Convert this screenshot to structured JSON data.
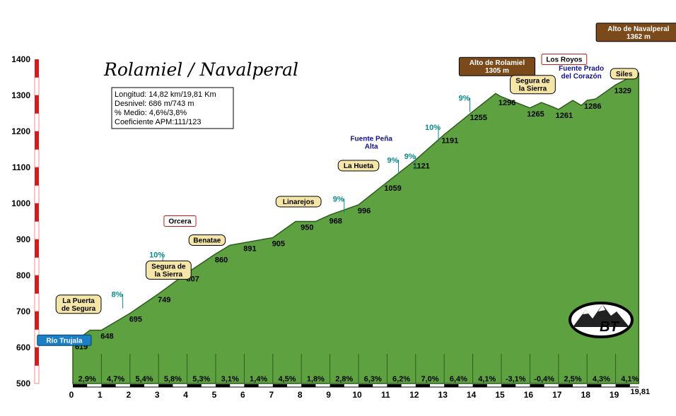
{
  "chart_data": {
    "type": "area",
    "title": "Rolamiel / Navalperal",
    "info": [
      "Longitud: 14,82 km/19,81 Km",
      "Desnivel: 686 m/743 m",
      "% Medio: 4,6%/3,8%",
      "Coeficiente APM:111/123"
    ],
    "ylim": [
      500,
      1400
    ],
    "y_ticks": [
      500,
      600,
      700,
      800,
      900,
      1000,
      1100,
      1200,
      1300,
      1400
    ],
    "xlim": [
      0,
      20
    ],
    "x_ticks": [
      "0",
      "1",
      "2",
      "3",
      "4",
      "5",
      "6",
      "7",
      "8",
      "9",
      "10",
      "11",
      "12",
      "13",
      "14",
      "15",
      "16",
      "17",
      "18",
      "19"
    ],
    "x_end_label": "19,81",
    "profile": [
      [
        0,
        619
      ],
      [
        0.3,
        630
      ],
      [
        0.6,
        648
      ],
      [
        1,
        648
      ],
      [
        2,
        695
      ],
      [
        3,
        749
      ],
      [
        4,
        807
      ],
      [
        5,
        860
      ],
      [
        5.5,
        884
      ],
      [
        6,
        891
      ],
      [
        7,
        905
      ],
      [
        7.8,
        950
      ],
      [
        8,
        950
      ],
      [
        8.5,
        950
      ],
      [
        9,
        968
      ],
      [
        10,
        996
      ],
      [
        11,
        1059
      ],
      [
        12,
        1121
      ],
      [
        13,
        1191
      ],
      [
        14,
        1255
      ],
      [
        14.8,
        1305
      ],
      [
        15,
        1296
      ],
      [
        16,
        1265
      ],
      [
        16.4,
        1280
      ],
      [
        16.8,
        1268
      ],
      [
        17,
        1261
      ],
      [
        17.5,
        1286
      ],
      [
        17.8,
        1272
      ],
      [
        18,
        1286
      ],
      [
        18.3,
        1290
      ],
      [
        19,
        1329
      ],
      [
        19.5,
        1350
      ],
      [
        19.81,
        1362
      ]
    ],
    "point_labels": [
      {
        "x": 0.3,
        "y": 619,
        "label": "619"
      },
      {
        "x": 1.2,
        "y": 648,
        "label": "648"
      },
      {
        "x": 2.2,
        "y": 695,
        "label": "695"
      },
      {
        "x": 3.2,
        "y": 749,
        "label": "749"
      },
      {
        "x": 4.2,
        "y": 807,
        "label": "807"
      },
      {
        "x": 5.2,
        "y": 860,
        "label": "860"
      },
      {
        "x": 6.2,
        "y": 891,
        "label": "891"
      },
      {
        "x": 7.2,
        "y": 905,
        "label": "905"
      },
      {
        "x": 8.2,
        "y": 950,
        "label": "950"
      },
      {
        "x": 9.2,
        "y": 968,
        "label": "968"
      },
      {
        "x": 10.2,
        "y": 996,
        "label": "996"
      },
      {
        "x": 11.2,
        "y": 1059,
        "label": "1059"
      },
      {
        "x": 12.2,
        "y": 1121,
        "label": "1121"
      },
      {
        "x": 13.2,
        "y": 1191,
        "label": "1191"
      },
      {
        "x": 14.2,
        "y": 1255,
        "label": "1255"
      },
      {
        "x": 15.2,
        "y": 1296,
        "label": "1296"
      },
      {
        "x": 16.2,
        "y": 1265,
        "label": "1265"
      },
      {
        "x": 17.2,
        "y": 1261,
        "label": "1261"
      },
      {
        "x": 18.2,
        "y": 1286,
        "label": "1286"
      },
      {
        "x": 19.25,
        "y": 1329,
        "label": "1329"
      }
    ],
    "segment_gradients": [
      "2,9%",
      "4,7%",
      "5,4%",
      "5,8%",
      "5,3%",
      "3,1%",
      "1,4%",
      "4,5%",
      "1,8%",
      "2,8%",
      "6,3%",
      "6,2%",
      "7,0%",
      "6,4%",
      "4,1%",
      "-3,1%",
      "-0,4%",
      "2,5%",
      "4,3%",
      "4,1%"
    ],
    "max_pct": [
      {
        "x": 1.55,
        "y": 740,
        "label": "8%"
      },
      {
        "x": 2.95,
        "y": 850,
        "label": "10%"
      },
      {
        "x": 9.3,
        "y": 1005,
        "label": "9%"
      },
      {
        "x": 11.2,
        "y": 1113,
        "label": "9%"
      },
      {
        "x": 11.8,
        "y": 1124,
        "label": "9%"
      },
      {
        "x": 12.6,
        "y": 1204,
        "label": "10%"
      },
      {
        "x": 13.7,
        "y": 1285,
        "label": "9%"
      }
    ],
    "places": [
      {
        "label": "Río Trujala",
        "x": -0.3,
        "y": 620,
        "style": "blue"
      },
      {
        "label": "La Puerta de Segura",
        "x": 0.2,
        "y": 720,
        "style": "tan"
      },
      {
        "label": "Segura de la Sierra",
        "x": 3.35,
        "y": 815,
        "style": "tan"
      },
      {
        "label": "Orcera",
        "x": 3.75,
        "y": 951,
        "style": "red"
      },
      {
        "label": "Benatae",
        "x": 4.7,
        "y": 898,
        "style": "tan"
      },
      {
        "label": "Linarejos",
        "x": 7.9,
        "y": 1005,
        "style": "tan"
      },
      {
        "label": "La Hueta",
        "x": 10.0,
        "y": 1105,
        "style": "tan"
      },
      {
        "label": "Fuente Peña Alta",
        "x": 10.45,
        "y": 1170,
        "style": "text"
      },
      {
        "label": "Alto de Rolamiel 1305 m",
        "x": 14.85,
        "y": 1380,
        "style": "brown"
      },
      {
        "label": "Segura de la Sierra",
        "x": 16.1,
        "y": 1330,
        "style": "tan"
      },
      {
        "label": "Los Royos",
        "x": 17.2,
        "y": 1400,
        "style": "red"
      },
      {
        "label": "Fuente Prado del Corazón",
        "x": 17.8,
        "y": 1365,
        "style": "text"
      },
      {
        "label": "Siles",
        "x": 19.3,
        "y": 1360,
        "style": "tan"
      },
      {
        "label": "Alto de Navalperal 1362 m",
        "x": 19.8,
        "y": 1475,
        "style": "brown"
      }
    ],
    "logo_text": "BT"
  }
}
